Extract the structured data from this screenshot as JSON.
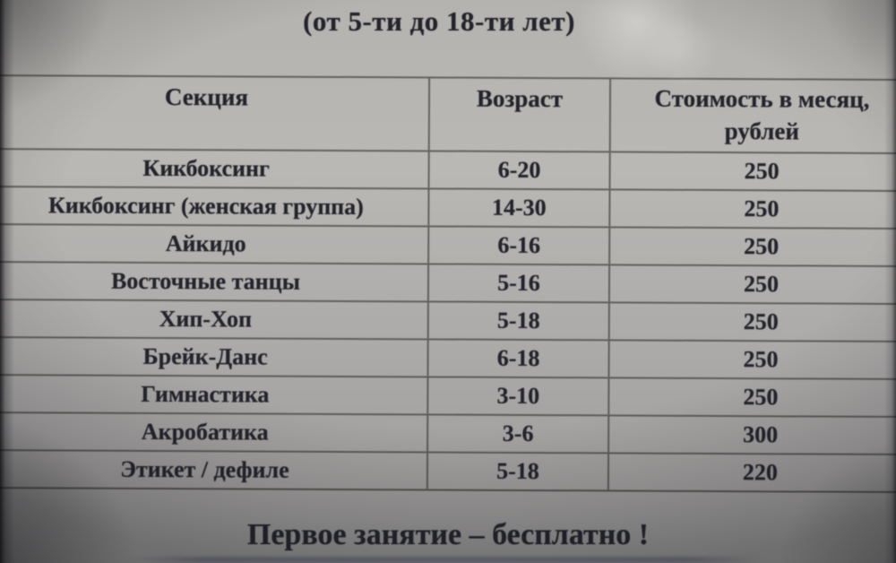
{
  "title": "(от 5-ти до 18-ти лет)",
  "table": {
    "columns": [
      {
        "label": "Секция"
      },
      {
        "label": "Возраст"
      },
      {
        "label": "Стоимость в месяц,",
        "label_line2": "рублей"
      }
    ],
    "rows": [
      {
        "section": "Кикбоксинг",
        "age": "6-20",
        "price": "250"
      },
      {
        "section": "Кикбоксинг (женская группа)",
        "age": "14-30",
        "price": "250"
      },
      {
        "section": "Айкидо",
        "age": "6-16",
        "price": "250"
      },
      {
        "section": "Восточные танцы",
        "age": "5-16",
        "price": "250"
      },
      {
        "section": "Хип-Хоп",
        "age": "5-18",
        "price": "250"
      },
      {
        "section": "Брейк-Данс",
        "age": "6-18",
        "price": "250"
      },
      {
        "section": "Гимнастика",
        "age": "3-10",
        "price": "250"
      },
      {
        "section": "Акробатика",
        "age": "3-6",
        "price": "300"
      },
      {
        "section": "Этикет / дефиле",
        "age": "5-18",
        "price": "220"
      }
    ]
  },
  "footer": "Первое занятие – бесплатно !"
}
